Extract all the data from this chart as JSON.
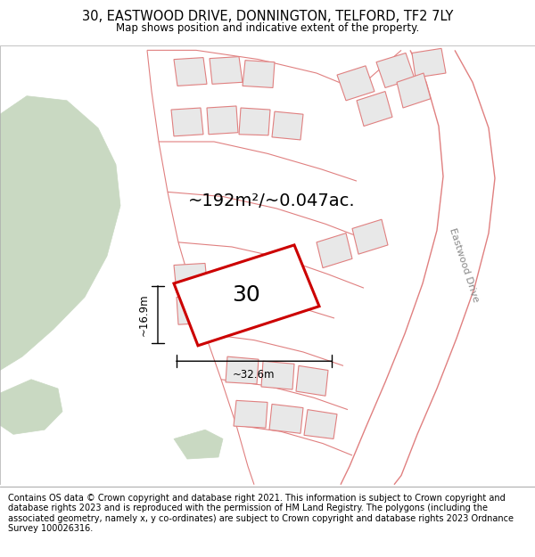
{
  "title": "30, EASTWOOD DRIVE, DONNINGTON, TELFORD, TF2 7LY",
  "subtitle": "Map shows position and indicative extent of the property.",
  "footer": "Contains OS data © Crown copyright and database right 2021. This information is subject to Crown copyright and database rights 2023 and is reproduced with the permission of HM Land Registry. The polygons (including the associated geometry, namely x, y co-ordinates) are subject to Crown copyright and database rights 2023 Ordnance Survey 100026316.",
  "area_text": "~192m²/~0.047ac.",
  "label_30": "30",
  "dim_width": "~32.6m",
  "dim_height": "~16.9m",
  "road_label": "Eastwood Drive",
  "bg_map_color": "#f7f0f0",
  "green_area_color": "#c9d9c2",
  "building_fill": "#e8e8e8",
  "building_edge": "#e08080",
  "highlight_fill": "#ffffff",
  "highlight_edge": "#cc0000",
  "road_line_color": "#e08080",
  "title_fontsize": 10.5,
  "subtitle_fontsize": 8.5,
  "footer_fontsize": 7.0
}
